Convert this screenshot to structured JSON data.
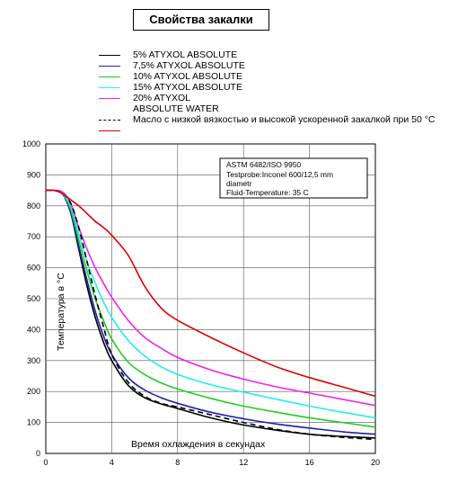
{
  "header": {
    "title": "Свойства закалки"
  },
  "legend": [
    {
      "label": "5% ATYXOL ABSOLUTE",
      "color": "#000000"
    },
    {
      "label": "7,5% ATYXOL ABSOLUTE",
      "color": "#1e1eb4"
    },
    {
      "label": "10% ATYXOL ABSOLUTE",
      "color": "#22cc22"
    },
    {
      "label": "15% ATYXOL ABSOLUTE",
      "color": "#22eeee"
    },
    {
      "label": "20% ATYXOL",
      "color": "#ee22ee"
    },
    {
      "label": "ABSOLUTE WATER",
      "color": ""
    },
    {
      "label": "Масло с низкой вязкостью и высокой ускоренной закалкой при 50 °C",
      "color": "#000000"
    },
    {
      "label": "",
      "color": "#dd0000"
    }
  ],
  "info_box": {
    "line1": "ASTM 6482/ISO 9950",
    "line2": "Testprobe:Inconel 600/12,5 mm",
    "line3": "diametr",
    "line4": "Fluid-Temperature: 35 C"
  },
  "chart_data": {
    "type": "line",
    "xlabel": "Время охлаждения в секундах",
    "ylabel": "Температура в °С",
    "xlim": [
      0,
      20
    ],
    "ylim": [
      0,
      1000
    ],
    "x_ticks": [
      0,
      4,
      8,
      12,
      16,
      20
    ],
    "y_ticks": [
      0,
      100,
      200,
      300,
      400,
      500,
      600,
      700,
      800,
      900,
      1000
    ],
    "grid": true,
    "x": [
      0,
      0.5,
      1,
      1.5,
      2,
      2.5,
      3,
      3.5,
      4,
      5,
      6,
      7,
      8,
      10,
      12,
      14,
      16,
      18,
      20
    ],
    "series": [
      {
        "name": "5% ATYXOL ABSOLUTE",
        "color": "#000000",
        "dash": false,
        "values": [
          850,
          850,
          840,
          780,
          660,
          540,
          440,
          360,
          300,
          220,
          180,
          160,
          145,
          115,
          92,
          75,
          62,
          55,
          50
        ]
      },
      {
        "name": "7,5% ATYXOL ABSOLUTE",
        "color": "#1e1eb4",
        "dash": false,
        "values": [
          850,
          850,
          840,
          780,
          670,
          560,
          460,
          380,
          320,
          245,
          205,
          180,
          162,
          133,
          112,
          95,
          82,
          70,
          62
        ]
      },
      {
        "name": "10% ATYXOL ABSOLUTE",
        "color": "#22cc22",
        "dash": false,
        "values": [
          850,
          850,
          840,
          790,
          690,
          590,
          500,
          430,
          370,
          295,
          255,
          228,
          208,
          178,
          153,
          133,
          115,
          100,
          85
        ]
      },
      {
        "name": "15% ATYXOL ABSOLUTE",
        "color": "#22eeee",
        "dash": false,
        "values": [
          850,
          850,
          840,
          800,
          710,
          620,
          550,
          490,
          440,
          365,
          315,
          280,
          255,
          222,
          198,
          175,
          153,
          133,
          115
        ]
      },
      {
        "name": "20% ATYXOL ABSOLUTE WATER",
        "color": "#ee22ee",
        "dash": false,
        "values": [
          850,
          850,
          845,
          810,
          730,
          660,
          600,
          550,
          505,
          430,
          375,
          340,
          310,
          270,
          240,
          215,
          195,
          175,
          155
        ]
      },
      {
        "name": "Масло с низкой вязкостью и высокой ускоренной закалкой при 50 °C",
        "color": "#000000",
        "dash": true,
        "values": [
          850,
          850,
          840,
          810,
          730,
          620,
          510,
          410,
          320,
          230,
          185,
          162,
          150,
          125,
          100,
          78,
          62,
          52,
          45
        ]
      },
      {
        "name": "",
        "color": "#dd0000",
        "dash": false,
        "values": [
          850,
          850,
          840,
          820,
          800,
          775,
          750,
          730,
          705,
          640,
          540,
          470,
          430,
          375,
          325,
          280,
          245,
          215,
          185
        ]
      }
    ]
  }
}
